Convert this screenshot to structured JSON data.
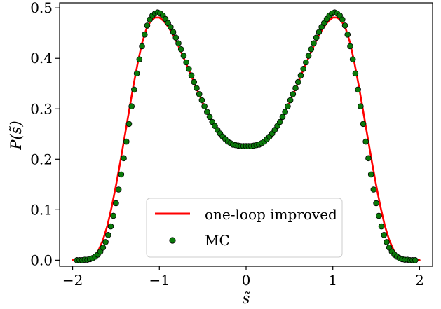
{
  "chart_data": {
    "type": "line",
    "xlabel": "s̃",
    "ylabel": "P(s̃)",
    "xlim": [
      -2.15,
      2.15
    ],
    "ylim": [
      -0.012,
      0.51
    ],
    "xticks": [
      -2,
      -1,
      0,
      1,
      2
    ],
    "xtick_labels": [
      "−2",
      "−1",
      "0",
      "1",
      "2"
    ],
    "yticks": [
      0.0,
      0.1,
      0.2,
      0.3,
      0.4,
      0.5
    ],
    "ytick_labels": [
      "0.0",
      "0.1",
      "0.2",
      "0.3",
      "0.4",
      "0.5"
    ],
    "grid": false,
    "legend_position": "lower-center",
    "series": [
      {
        "name": "one-loop improved",
        "kind": "line",
        "color": "#ff0000",
        "x": [
          -2.0,
          -1.9,
          -1.8,
          -1.75,
          -1.7,
          -1.65,
          -1.6,
          -1.55,
          -1.5,
          -1.45,
          -1.4,
          -1.35,
          -1.3,
          -1.25,
          -1.2,
          -1.15,
          -1.1,
          -1.05,
          -1.0,
          -0.95,
          -0.9,
          -0.85,
          -0.8,
          -0.75,
          -0.7,
          -0.65,
          -0.6,
          -0.55,
          -0.5,
          -0.45,
          -0.4,
          -0.35,
          -0.3,
          -0.25,
          -0.2,
          -0.15,
          -0.1,
          -0.05,
          0.0,
          0.05,
          0.1,
          0.15,
          0.2,
          0.25,
          0.3,
          0.35,
          0.4,
          0.45,
          0.5,
          0.55,
          0.6,
          0.65,
          0.7,
          0.75,
          0.8,
          0.85,
          0.9,
          0.95,
          1.0,
          1.05,
          1.1,
          1.15,
          1.2,
          1.25,
          1.3,
          1.35,
          1.4,
          1.45,
          1.5,
          1.55,
          1.6,
          1.65,
          1.7,
          1.75,
          1.8,
          1.9,
          2.0
        ],
        "y": [
          0.0,
          0.0,
          0.003,
          0.008,
          0.02,
          0.04,
          0.068,
          0.105,
          0.148,
          0.195,
          0.245,
          0.295,
          0.345,
          0.39,
          0.43,
          0.458,
          0.474,
          0.481,
          0.481,
          0.474,
          0.463,
          0.449,
          0.432,
          0.413,
          0.393,
          0.373,
          0.352,
          0.332,
          0.312,
          0.293,
          0.276,
          0.26,
          0.246,
          0.237,
          0.231,
          0.227,
          0.224,
          0.222,
          0.222,
          0.222,
          0.224,
          0.227,
          0.231,
          0.237,
          0.246,
          0.26,
          0.276,
          0.293,
          0.312,
          0.332,
          0.352,
          0.373,
          0.393,
          0.413,
          0.432,
          0.449,
          0.463,
          0.474,
          0.481,
          0.481,
          0.474,
          0.458,
          0.43,
          0.39,
          0.345,
          0.295,
          0.245,
          0.195,
          0.148,
          0.105,
          0.068,
          0.04,
          0.02,
          0.008,
          0.003,
          0.0,
          0.0
        ]
      },
      {
        "name": "MC",
        "kind": "scatter",
        "color": "#0a7a0a",
        "edgecolor": "#000000",
        "x": [
          -1.95,
          -1.92,
          -1.89,
          -1.86,
          -1.83,
          -1.8,
          -1.77,
          -1.74,
          -1.71,
          -1.68,
          -1.65,
          -1.62,
          -1.59,
          -1.56,
          -1.53,
          -1.5,
          -1.47,
          -1.44,
          -1.41,
          -1.38,
          -1.35,
          -1.32,
          -1.29,
          -1.26,
          -1.23,
          -1.2,
          -1.17,
          -1.14,
          -1.11,
          -1.08,
          -1.05,
          -1.02,
          -0.99,
          -0.96,
          -0.93,
          -0.9,
          -0.87,
          -0.84,
          -0.81,
          -0.78,
          -0.75,
          -0.72,
          -0.69,
          -0.66,
          -0.63,
          -0.6,
          -0.57,
          -0.54,
          -0.51,
          -0.48,
          -0.45,
          -0.42,
          -0.39,
          -0.36,
          -0.33,
          -0.3,
          -0.27,
          -0.24,
          -0.21,
          -0.18,
          -0.15,
          -0.12,
          -0.09,
          -0.06,
          -0.03,
          0.0,
          0.03,
          0.06,
          0.09,
          0.12,
          0.15,
          0.18,
          0.21,
          0.24,
          0.27,
          0.3,
          0.33,
          0.36,
          0.39,
          0.42,
          0.45,
          0.48,
          0.51,
          0.54,
          0.57,
          0.6,
          0.63,
          0.66,
          0.69,
          0.72,
          0.75,
          0.78,
          0.81,
          0.84,
          0.87,
          0.9,
          0.93,
          0.96,
          0.99,
          1.02,
          1.05,
          1.08,
          1.11,
          1.14,
          1.17,
          1.2,
          1.23,
          1.26,
          1.29,
          1.32,
          1.35,
          1.38,
          1.41,
          1.44,
          1.47,
          1.5,
          1.53,
          1.56,
          1.59,
          1.62,
          1.65,
          1.68,
          1.71,
          1.74,
          1.77,
          1.8,
          1.83,
          1.86,
          1.89,
          1.92,
          1.95
        ],
        "y": [
          0.0,
          0.0,
          0.0,
          0.001,
          0.001,
          0.002,
          0.004,
          0.007,
          0.011,
          0.017,
          0.025,
          0.036,
          0.05,
          0.067,
          0.088,
          0.113,
          0.14,
          0.17,
          0.202,
          0.235,
          0.27,
          0.305,
          0.338,
          0.37,
          0.398,
          0.424,
          0.447,
          0.465,
          0.477,
          0.485,
          0.489,
          0.491,
          0.489,
          0.485,
          0.478,
          0.47,
          0.462,
          0.452,
          0.441,
          0.43,
          0.418,
          0.405,
          0.392,
          0.379,
          0.366,
          0.353,
          0.341,
          0.329,
          0.317,
          0.305,
          0.294,
          0.284,
          0.274,
          0.266,
          0.258,
          0.251,
          0.245,
          0.24,
          0.235,
          0.232,
          0.229,
          0.228,
          0.227,
          0.226,
          0.226,
          0.226,
          0.226,
          0.226,
          0.227,
          0.228,
          0.229,
          0.232,
          0.235,
          0.24,
          0.245,
          0.251,
          0.258,
          0.266,
          0.274,
          0.284,
          0.294,
          0.305,
          0.317,
          0.329,
          0.341,
          0.353,
          0.366,
          0.379,
          0.392,
          0.405,
          0.418,
          0.43,
          0.441,
          0.452,
          0.462,
          0.47,
          0.478,
          0.485,
          0.489,
          0.491,
          0.489,
          0.485,
          0.477,
          0.465,
          0.447,
          0.424,
          0.398,
          0.37,
          0.338,
          0.305,
          0.27,
          0.235,
          0.202,
          0.17,
          0.14,
          0.113,
          0.088,
          0.067,
          0.05,
          0.036,
          0.025,
          0.017,
          0.011,
          0.007,
          0.004,
          0.002,
          0.001,
          0.001,
          0.0,
          0.0,
          0.0
        ]
      }
    ]
  }
}
